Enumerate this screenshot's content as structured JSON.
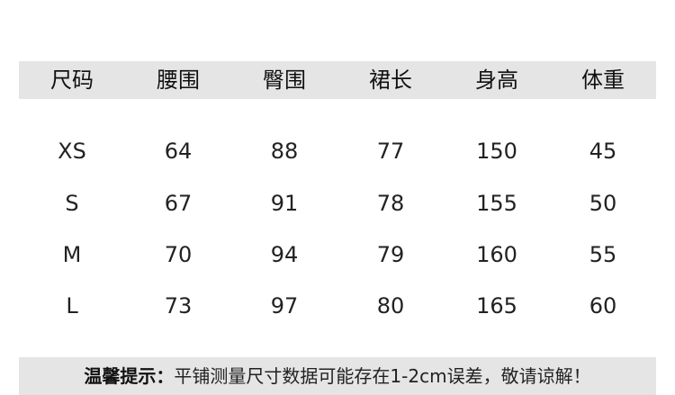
{
  "headers": [
    "尺码",
    "腰围",
    "臀围",
    "裙长",
    "身高",
    "体重"
  ],
  "rows": [
    [
      "XS",
      "64",
      "88",
      "77",
      "150",
      "45"
    ],
    [
      "S",
      "67",
      "91",
      "78",
      "155",
      "50"
    ],
    [
      "M",
      "70",
      "94",
      "79",
      "160",
      "55"
    ],
    [
      "L",
      "73",
      "97",
      "80",
      "165",
      "60"
    ]
  ],
  "note": {
    "label": "温馨提示：",
    "text": "平铺测量尺寸数据可能存在1-2cm误差，敬请谅解！"
  }
}
